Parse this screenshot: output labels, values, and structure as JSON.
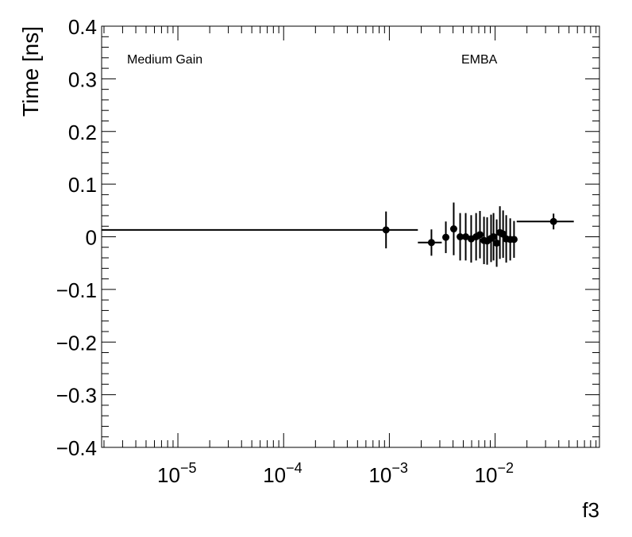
{
  "chart_data": {
    "type": "scatter",
    "xlabel": "f3",
    "ylabel": "Time [ns]",
    "annotations": [
      "Medium Gain",
      "EMBA"
    ],
    "log_x": true,
    "color": "#000000",
    "minor_ticks": true,
    "xlim": [
      1.9e-06,
      0.097
    ],
    "ylim": [
      -0.4,
      0.4
    ],
    "xticks": [
      {
        "value": 1e-05,
        "label": "10",
        "exponent": "−5"
      },
      {
        "value": 0.0001,
        "label": "10",
        "exponent": "−4"
      },
      {
        "value": 0.001,
        "label": "10",
        "exponent": "−3"
      },
      {
        "value": 0.01,
        "label": "10",
        "exponent": "−2"
      }
    ],
    "yticks": [
      {
        "value": -0.4,
        "label": "−0.4"
      },
      {
        "value": -0.3,
        "label": "−0.3"
      },
      {
        "value": -0.2,
        "label": "−0.2"
      },
      {
        "value": -0.1,
        "label": "−0.1"
      },
      0,
      0.1,
      0.2,
      0.3,
      0.4
    ],
    "x": [
      0.00093,
      0.0025,
      0.00342,
      0.00406,
      0.00467,
      0.00527,
      0.00594,
      0.00661,
      0.00719,
      0.00785,
      0.00841,
      0.00916,
      0.00966,
      0.01035,
      0.0111,
      0.0119,
      0.01274,
      0.0139,
      0.0151,
      0.0357
    ],
    "xlow": [
      0,
      0.00186,
      null,
      null,
      null,
      null,
      null,
      null,
      null,
      null,
      null,
      null,
      null,
      null,
      null,
      null,
      null,
      null,
      null,
      0.016
    ],
    "xhigh": [
      0.00186,
      0.00313,
      null,
      null,
      null,
      null,
      null,
      null,
      null,
      null,
      null,
      null,
      null,
      null,
      null,
      null,
      null,
      null,
      null,
      0.0555
    ],
    "values": [
      0.013,
      -0.011,
      -0.001,
      0.015,
      0,
      0,
      -0.004,
      0,
      0.004,
      -0.007,
      -0.008,
      -0.003,
      0,
      -0.012,
      0.008,
      0.005,
      -0.004,
      -0.005,
      -0.005,
      0.029
    ],
    "yerr": [
      0.035,
      0.025,
      0.03,
      0.05,
      0.045,
      0.045,
      0.045,
      0.045,
      0.045,
      0.045,
      0.045,
      0.045,
      0.045,
      0.045,
      0.05,
      0.045,
      0.045,
      0.04,
      0.035,
      0.015
    ]
  }
}
